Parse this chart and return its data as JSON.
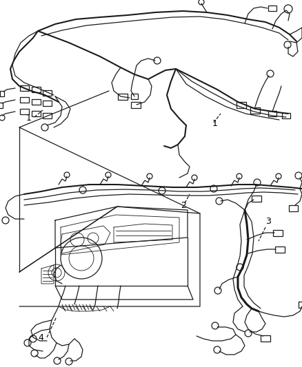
{
  "background_color": "#ffffff",
  "line_color": "#1a1a1a",
  "label_color": "#000000",
  "fig_width": 4.38,
  "fig_height": 5.33,
  "dpi": 100,
  "lw_main": 2.2,
  "lw_med": 1.5,
  "lw_thin": 0.9,
  "lw_vt": 0.6
}
